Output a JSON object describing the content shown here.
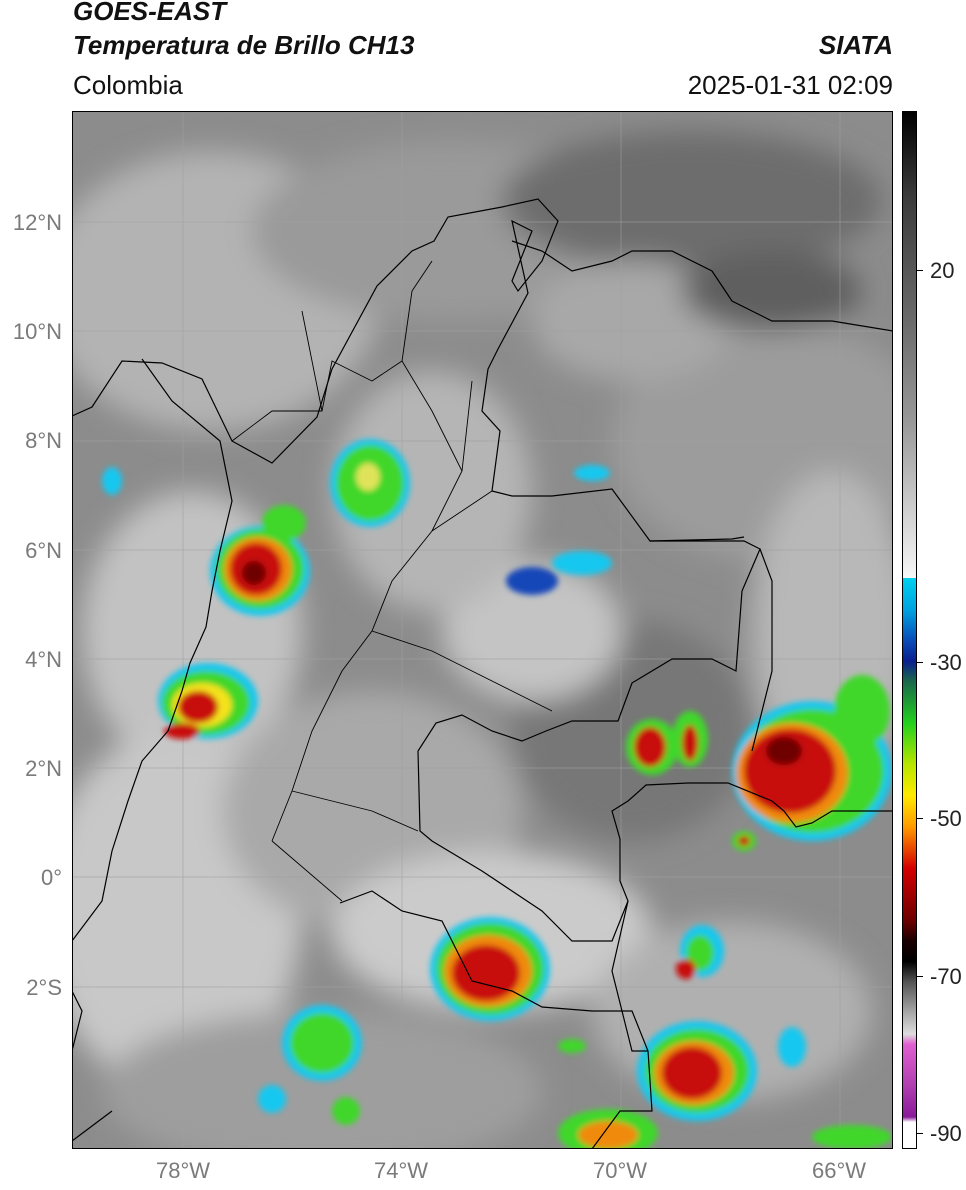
{
  "header": {
    "satellite": "GOES-EAST",
    "product": "Temperatura de Brillo CH13",
    "region": "Colombia",
    "organization": "SIATA",
    "timestamp": "2025-01-31 02:09"
  },
  "map": {
    "lat_labels": [
      "12°N",
      "10°N",
      "8°N",
      "6°N",
      "4°N",
      "2°N",
      "0°",
      "2°S"
    ],
    "lon_labels": [
      "78°W",
      "74°W",
      "70°W",
      "66°W"
    ],
    "extent": {
      "lon": [
        -80,
        -65
      ],
      "lat": [
        -5,
        14
      ]
    },
    "gridlines": true
  },
  "colorbar": {
    "ticks": [
      "20",
      "-30",
      "-50",
      "-70",
      "-90"
    ],
    "range": [
      -92,
      34
    ],
    "colors": {
      "warm_gray_top": "#000000",
      "gray_mid": "#888888",
      "light": "#ffffff",
      "cyan": "#00bfe6",
      "blue": "#0a1f8f",
      "green": "#22d11e",
      "yellow": "#ffea00",
      "red": "#d40000",
      "black": "#000000",
      "pink": "#e05fd0",
      "purple": "#8a1a9a"
    }
  },
  "storm_colors": {
    "cyan": "#19c7ef",
    "blue": "#1747b8",
    "green": "#3fd72a",
    "yellow": "#f4e21a",
    "orange": "#f08a10",
    "red": "#c80a0a",
    "darkred": "#6e0505"
  }
}
